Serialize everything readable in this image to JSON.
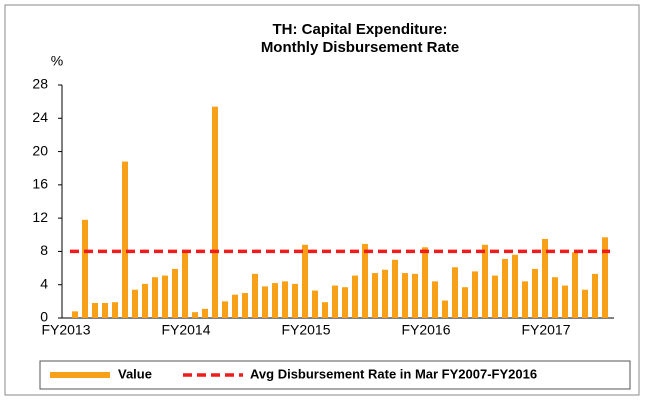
{
  "chart_data": {
    "type": "bar",
    "title": [
      "TH: Capital Expenditure:",
      "Monthly Disbursement Rate"
    ],
    "y_label": "%",
    "categories": [
      "FY2013",
      null,
      null,
      null,
      null,
      null,
      null,
      null,
      null,
      null,
      null,
      null,
      "FY2014",
      null,
      null,
      null,
      null,
      null,
      null,
      null,
      null,
      null,
      null,
      null,
      "FY2015",
      null,
      null,
      null,
      null,
      null,
      null,
      null,
      null,
      null,
      null,
      null,
      "FY2016",
      null,
      null,
      null,
      null,
      null,
      null,
      null,
      null,
      null,
      null,
      null,
      "FY2017",
      null,
      null,
      null,
      null,
      null
    ],
    "series": [
      {
        "name": "Value",
        "color": "#f7a11a",
        "values": [
          0.8,
          11.8,
          1.8,
          1.8,
          1.9,
          18.8,
          3.4,
          4.1,
          4.9,
          5.1,
          5.9,
          7.9,
          0.7,
          1.1,
          25.4,
          2.0,
          2.8,
          3.0,
          5.3,
          3.8,
          4.2,
          4.4,
          4.1,
          8.8,
          3.3,
          1.9,
          3.9,
          3.7,
          5.1,
          8.9,
          5.4,
          5.8,
          7.0,
          5.4,
          5.3,
          8.5,
          4.4,
          2.1,
          6.1,
          3.7,
          5.6,
          8.8,
          5.1,
          7.1,
          7.6,
          4.4,
          5.9,
          9.5,
          4.9,
          3.9,
          7.9,
          3.4,
          5.3,
          9.7
        ]
      }
    ],
    "reference_line": {
      "name": "Avg Disbursement Rate in Mar FY2007-FY2016",
      "value": 8,
      "color": "#ee1c1c",
      "style": "dashed"
    },
    "ylim": [
      0,
      28
    ],
    "yticks": [
      0,
      4,
      8,
      12,
      16,
      20,
      24,
      28
    ],
    "grid": false,
    "legend": "bottom"
  }
}
